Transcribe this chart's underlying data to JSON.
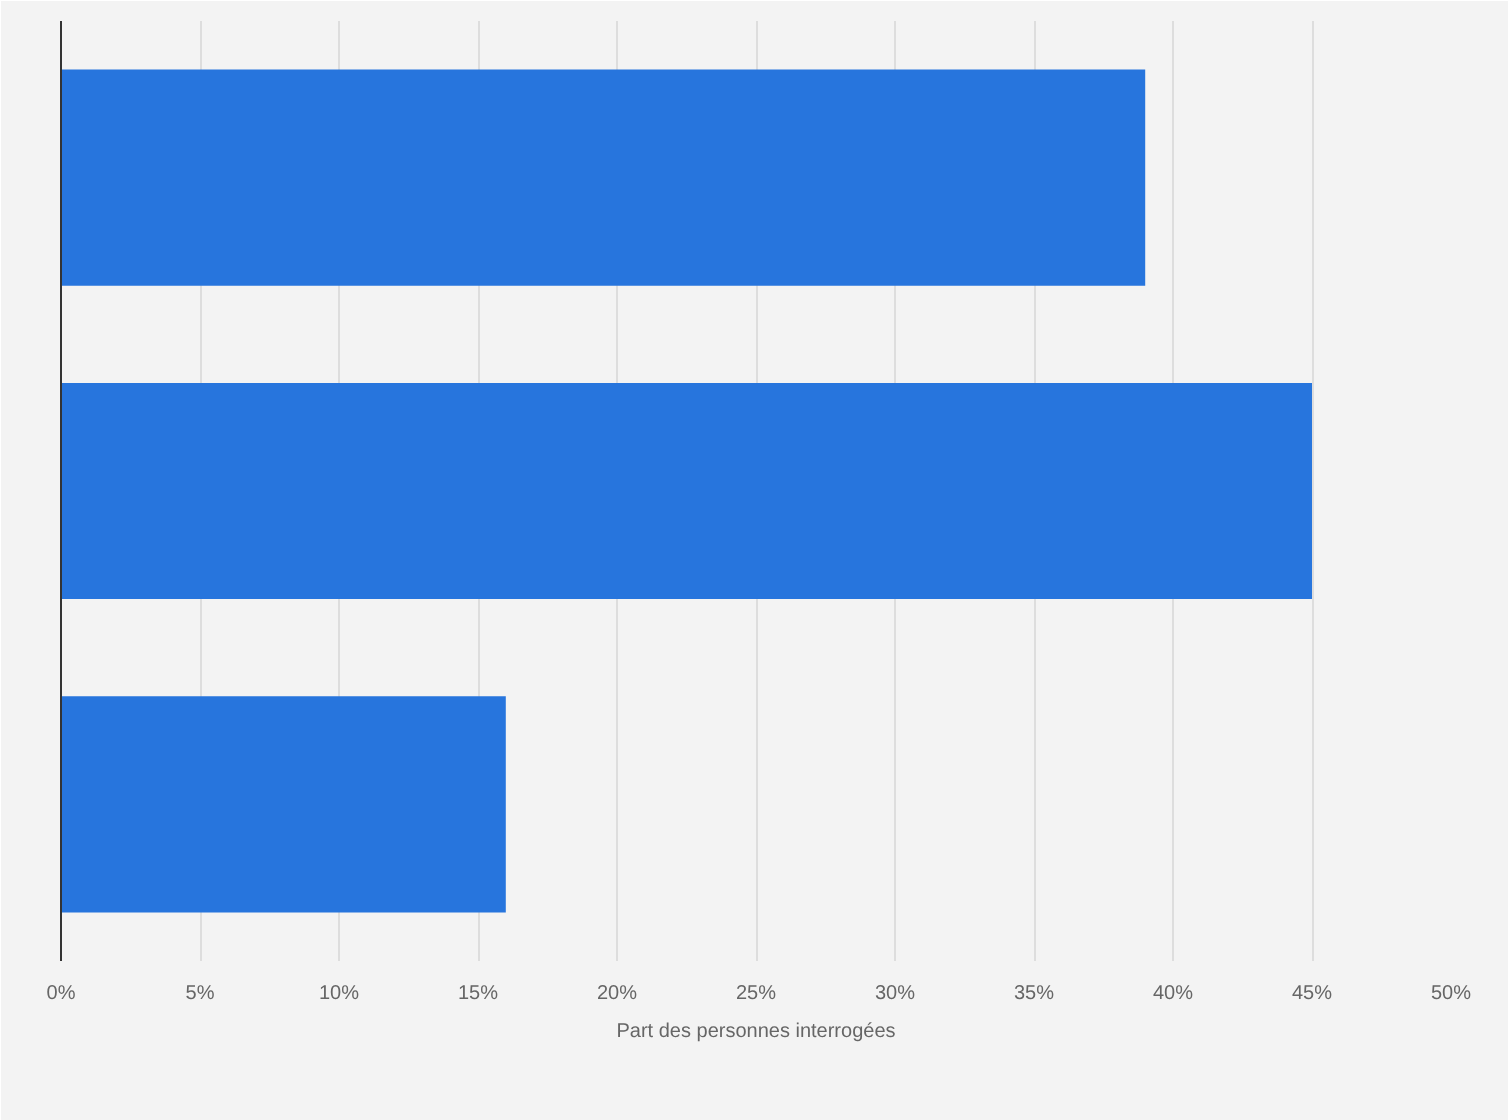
{
  "chart_data": {
    "type": "bar",
    "orientation": "horizontal",
    "categories": [
      null,
      null,
      null
    ],
    "values": [
      39,
      45,
      16
    ],
    "color": "#2775dd",
    "xlabel": "Part des personnes interrogées",
    "xlim": [
      0,
      50
    ],
    "xticks": [
      {
        "value": 0,
        "label": "0%"
      },
      {
        "value": 5,
        "label": "5%"
      },
      {
        "value": 10,
        "label": "10%"
      },
      {
        "value": 15,
        "label": "15%"
      },
      {
        "value": 20,
        "label": "20%"
      },
      {
        "value": 25,
        "label": "25%"
      },
      {
        "value": 30,
        "label": "30%"
      },
      {
        "value": 35,
        "label": "35%"
      },
      {
        "value": 40,
        "label": "40%"
      },
      {
        "value": 45,
        "label": "45%"
      },
      {
        "value": 50,
        "label": "50%"
      }
    ],
    "grid": "x"
  }
}
